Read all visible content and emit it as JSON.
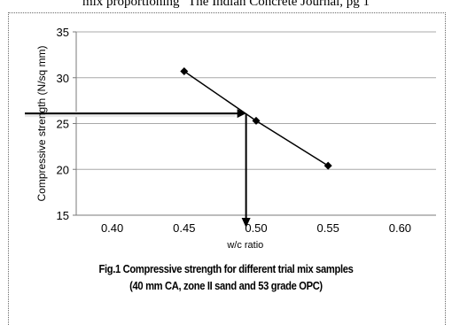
{
  "header_text": "mix proportioning\" The Indian Concrete Journal, pg 1",
  "chart_data": {
    "type": "line",
    "title": "",
    "xlabel": "w/c ratio",
    "ylabel": "Compressive strength (N/sq mm)",
    "xlim": [
      0.375,
      0.625
    ],
    "ylim": [
      15,
      35
    ],
    "xticks": [
      0.4,
      0.45,
      0.5,
      0.55,
      0.6
    ],
    "xtick_labels": [
      "0.40",
      "0.45",
      "0.50",
      "0.55",
      "0.60"
    ],
    "yticks": [
      15,
      20,
      25,
      30,
      35
    ],
    "ytick_labels": [
      "15",
      "20",
      "25",
      "30",
      "35"
    ],
    "grid": "horizontal",
    "series": [
      {
        "x": [
          0.45,
          0.5,
          0.55
        ],
        "y": [
          30.7,
          25.3,
          20.4
        ],
        "marker": "diamond",
        "color": "#000000"
      }
    ],
    "annotations": {
      "target_strength": 26.1,
      "interpolated_wc": 0.493
    }
  },
  "caption": {
    "line1": "Fig.1 Compressive strength for different trial mix samples",
    "line2": "(40 mm CA, zone II sand and 53 grade OPC)"
  }
}
